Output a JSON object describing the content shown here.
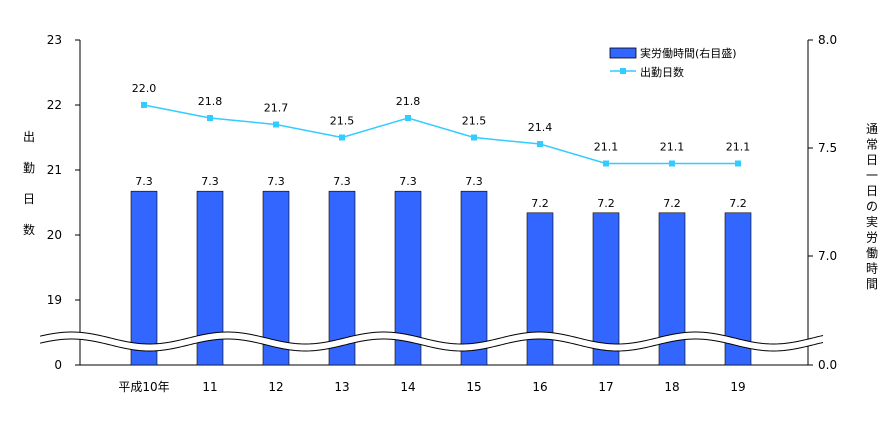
{
  "chart_data": {
    "type": "bar+line",
    "categories": [
      "平成10年",
      "11",
      "12",
      "13",
      "14",
      "15",
      "16",
      "17",
      "18",
      "19"
    ],
    "series": [
      {
        "name": "実労働時間(右目盛)",
        "type": "bar",
        "axis": "right",
        "values": [
          7.3,
          7.3,
          7.3,
          7.3,
          7.3,
          7.3,
          7.2,
          7.2,
          7.2,
          7.2
        ],
        "labels": [
          "7.3",
          "7.3",
          "7.3",
          "7.3",
          "7.3",
          "7.3",
          "7.2",
          "7.2",
          "7.2",
          "7.2"
        ],
        "color": "#3366ff"
      },
      {
        "name": "出勤日数",
        "type": "line",
        "axis": "left",
        "values": [
          22.0,
          21.8,
          21.7,
          21.5,
          21.8,
          21.5,
          21.4,
          21.1,
          21.1,
          21.1
        ],
        "labels": [
          "22.0",
          "21.8",
          "21.7",
          "21.5",
          "21.8",
          "21.5",
          "21.4",
          "21.1",
          "21.1",
          "21.1"
        ],
        "color": "#33ccff"
      }
    ],
    "left_axis": {
      "label": "出勤日数",
      "ticks": [
        "23",
        "22",
        "21",
        "20",
        "19",
        "0"
      ],
      "range": [
        19,
        23
      ],
      "broken": true,
      "bottom_value": "0"
    },
    "right_axis": {
      "label": "通常日一日の実労働時間",
      "ticks": [
        "8.0",
        "7.5",
        "7.0",
        "0.0"
      ],
      "range": [
        7.0,
        8.0
      ],
      "broken": true,
      "bottom_value": "0.0"
    },
    "grid": false,
    "legend_position": "top-right"
  }
}
